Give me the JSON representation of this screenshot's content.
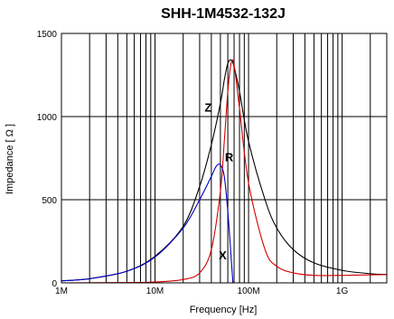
{
  "chart_data": {
    "type": "line",
    "title": "SHH-1M4532-132J",
    "xlabel": "Frequency [Hz]",
    "ylabel": "Impedance [ Ω ]",
    "x_scale": "log",
    "xlim": [
      1000000,
      3000000000
    ],
    "ylim": [
      0,
      1500
    ],
    "x_ticks": [
      {
        "value": 1000000,
        "label": "1M"
      },
      {
        "value": 10000000,
        "label": "10M"
      },
      {
        "value": 100000000,
        "label": "100M"
      },
      {
        "value": 1000000000,
        "label": "1G"
      }
    ],
    "y_ticks": [
      {
        "value": 0,
        "label": "0"
      },
      {
        "value": 500,
        "label": "500"
      },
      {
        "value": 1000,
        "label": "1000"
      },
      {
        "value": 1500,
        "label": "1500"
      }
    ],
    "grid": true,
    "series": [
      {
        "name": "Z",
        "color": "#000000",
        "x": [
          1000000,
          2000000,
          5000000,
          10000000,
          20000000,
          30000000,
          40000000,
          50000000,
          55000000,
          60000000,
          65000000,
          70000000,
          80000000,
          100000000,
          150000000,
          200000000,
          300000000,
          500000000,
          1000000000,
          2000000000,
          3000000000
        ],
        "y": [
          12,
          25,
          70,
          160,
          340,
          580,
          830,
          1080,
          1220,
          1320,
          1340,
          1300,
          1150,
          850,
          500,
          330,
          200,
          120,
          75,
          55,
          50
        ]
      },
      {
        "name": "R",
        "color": "#d40000",
        "x": [
          1000000,
          5000000,
          10000000,
          20000000,
          30000000,
          40000000,
          50000000,
          55000000,
          60000000,
          65000000,
          70000000,
          80000000,
          100000000,
          150000000,
          200000000,
          300000000,
          500000000,
          1000000000,
          3000000000
        ],
        "y": [
          0,
          2,
          5,
          20,
          60,
          200,
          550,
          850,
          1150,
          1320,
          1310,
          1050,
          600,
          200,
          100,
          60,
          45,
          45,
          50
        ]
      },
      {
        "name": "X",
        "color": "#0000c8",
        "x": [
          1000000,
          2000000,
          5000000,
          10000000,
          20000000,
          30000000,
          40000000,
          45000000,
          50000000,
          55000000,
          60000000,
          65000000,
          68000000
        ],
        "y": [
          12,
          25,
          70,
          155,
          330,
          500,
          640,
          700,
          710,
          640,
          430,
          160,
          0
        ]
      }
    ],
    "curve_labels": [
      {
        "text": "Z",
        "x": 37000000,
        "y": 1030
      },
      {
        "text": "R",
        "x": 62000000,
        "y": 730
      },
      {
        "text": "X",
        "x": 53000000,
        "y": 140
      }
    ]
  }
}
